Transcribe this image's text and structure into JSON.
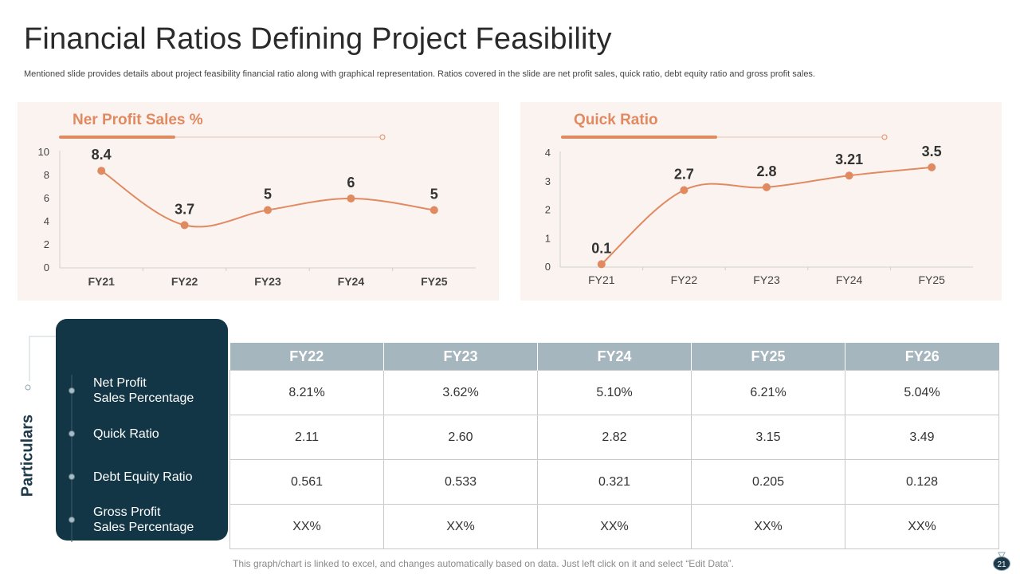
{
  "title": "Financial Ratios Defining Project Feasibility",
  "subtitle": "Mentioned slide provides details about project feasibility financial ratio along with graphical representation. Ratios covered in the slide are net profit sales, quick ratio, debt equity ratio and gross profit sales.",
  "colors": {
    "accent": "#e08a61",
    "panel_bg": "#fbf3ef",
    "dark": "#133646",
    "header": "#a6b6be"
  },
  "chart_data": [
    {
      "type": "line",
      "title": "Ner Profit Sales %",
      "categories": [
        "FY21",
        "FY22",
        "FY23",
        "FY24",
        "FY25"
      ],
      "values": [
        8.4,
        3.7,
        5,
        6,
        5
      ],
      "labels": [
        "8.4",
        "3.7",
        "5",
        "6",
        "5"
      ],
      "yticks": [
        "0",
        "2",
        "4",
        "6",
        "8",
        "10"
      ],
      "ylim": [
        0,
        10
      ],
      "grid": false
    },
    {
      "type": "line",
      "title": "Quick Ratio",
      "categories": [
        "FY21",
        "FY22",
        "FY23",
        "FY24",
        "FY25"
      ],
      "values": [
        0.1,
        2.7,
        2.8,
        3.21,
        3.5
      ],
      "labels": [
        "0.1",
        "2.7",
        "2.8",
        "3.21",
        "3.5"
      ],
      "yticks": [
        "0",
        "1",
        "2",
        "3",
        "4"
      ],
      "ylim": [
        0,
        4
      ],
      "grid": false
    }
  ],
  "particulars": {
    "label": "Particulars",
    "items": [
      [
        "Net Profit",
        "Sales Percentage"
      ],
      [
        "Quick Ratio"
      ],
      [
        "Debt Equity Ratio"
      ],
      [
        "Gross Profit",
        "Sales Percentage"
      ]
    ]
  },
  "table": {
    "headers": [
      "FY22",
      "FY23",
      "FY24",
      "FY25",
      "FY26"
    ],
    "rows": [
      [
        "8.21%",
        "3.62%",
        "5.10%",
        "6.21%",
        "5.04%"
      ],
      [
        "2.11",
        "2.60",
        "2.82",
        "3.15",
        "3.49"
      ],
      [
        "0.561",
        "0.533",
        "0.321",
        "0.205",
        "0.128"
      ],
      [
        "XX%",
        "XX%",
        "XX%",
        "XX%",
        "XX%"
      ]
    ]
  },
  "footer": "This graph/chart is linked to excel, and changes automatically based on data. Just left click on it and select “Edit Data”.",
  "page_number": "21"
}
